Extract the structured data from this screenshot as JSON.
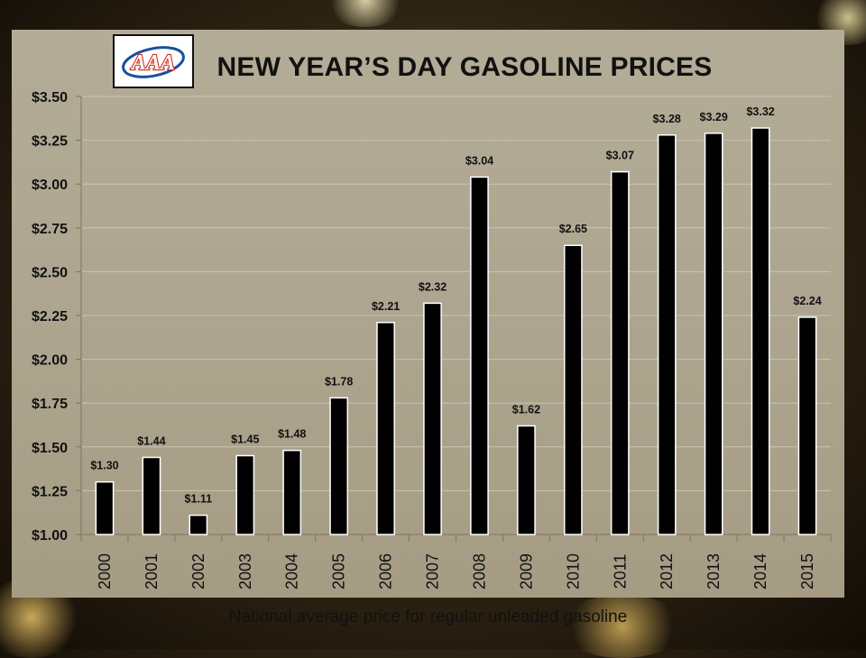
{
  "colors": {
    "bar_fill": "#000000",
    "bar_stroke": "#ffffff",
    "panel": "#ada58f",
    "gridline": "#c9c3b3",
    "aaa_red": "#d52b1e",
    "aaa_blue": "#1a4f9c"
  },
  "logo": {
    "text": "AAA",
    "icon": "aaa-logo-icon"
  },
  "caption": "National average price for regular unleaded gasoline",
  "chart_data": {
    "type": "bar",
    "title": "NEW YEAR’S DAY GASOLINE PRICES",
    "xlabel": "",
    "ylabel": "",
    "categories": [
      "2000",
      "2001",
      "2002",
      "2003",
      "2004",
      "2005",
      "2006",
      "2007",
      "2008",
      "2009",
      "2010",
      "2011",
      "2012",
      "2013",
      "2014",
      "2015"
    ],
    "values": [
      1.3,
      1.44,
      1.11,
      1.45,
      1.48,
      1.78,
      2.21,
      2.32,
      3.04,
      1.62,
      2.65,
      3.07,
      3.28,
      3.29,
      3.32,
      2.24
    ],
    "data_labels": [
      "$1.30",
      "$1.44",
      "$1.11",
      "$1.45",
      "$1.48",
      "$1.78",
      "$2.21",
      "$2.32",
      "$3.04",
      "$1.62",
      "$2.65",
      "$3.07",
      "$3.28",
      "$3.29",
      "$3.32",
      "$2.24"
    ],
    "y_tick_values": [
      1.0,
      1.25,
      1.5,
      1.75,
      2.0,
      2.25,
      2.5,
      2.75,
      3.0,
      3.25,
      3.5
    ],
    "y_tick_labels": [
      "$1.00",
      "$1.25",
      "$1.50",
      "$1.75",
      "$2.00",
      "$2.25",
      "$2.50",
      "$2.75",
      "$3.00",
      "$3.25",
      "$3.50"
    ],
    "ylim": [
      1.0,
      3.5
    ],
    "grid": true,
    "legend": "none"
  }
}
